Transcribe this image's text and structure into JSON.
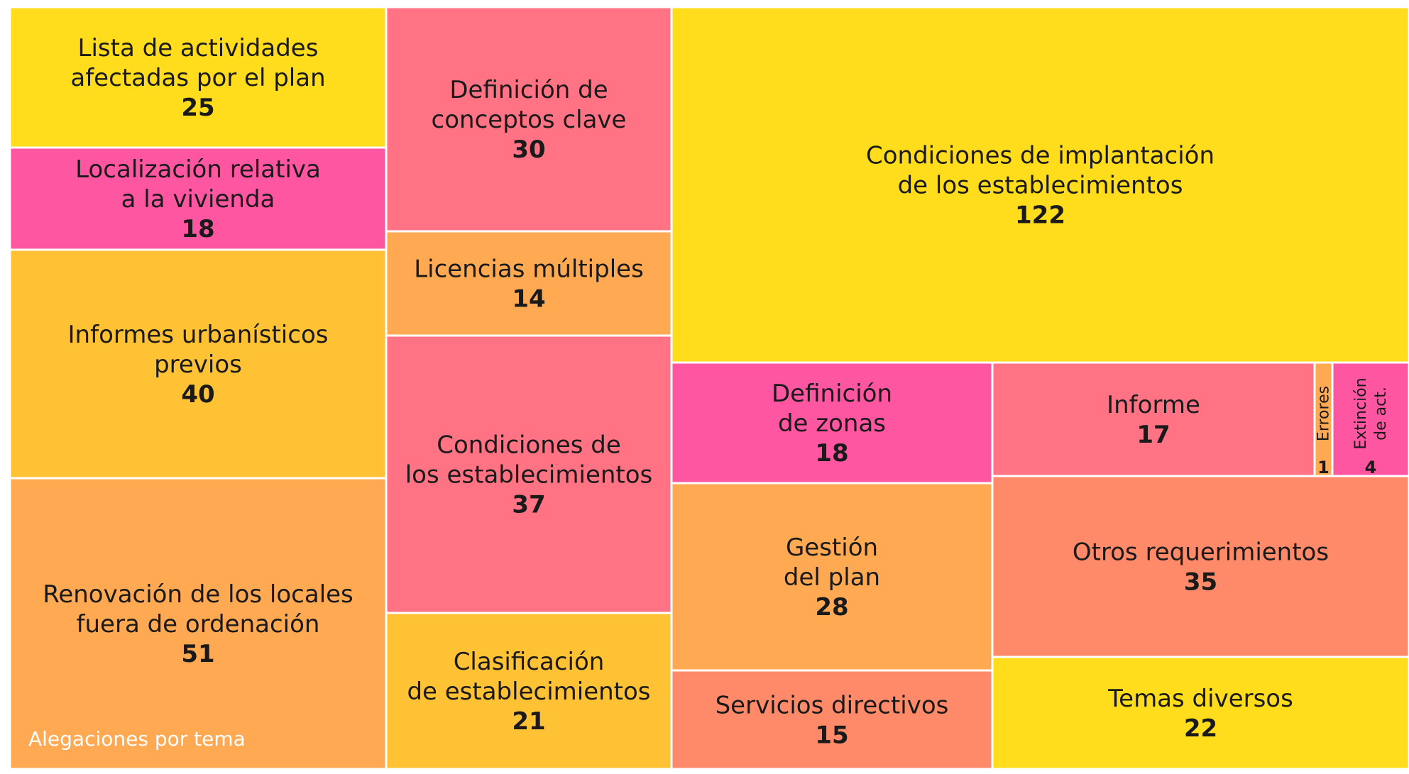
{
  "chart_data": {
    "type": "treemap",
    "title": "Alegaciones por tema",
    "colors": {
      "yellow": "#ffdd1c",
      "gold": "#ffc234",
      "light_orange": "#ffa953",
      "salmon": "#ff8a6a",
      "coral": "#ff7385",
      "magenta": "#ff56a2",
      "border": "#ffffff",
      "text": "#1a1a1a"
    },
    "items": [
      {
        "id": "lista",
        "label": [
          "Lista de actividades",
          "afectadas por el plan"
        ],
        "value": 25,
        "color": "yellow"
      },
      {
        "id": "localizacion",
        "label": [
          "Localización relativa",
          "a la vivienda"
        ],
        "value": 18,
        "color": "magenta"
      },
      {
        "id": "informes",
        "label": [
          "Informes urbanísticos",
          "previos"
        ],
        "value": 40,
        "color": "gold"
      },
      {
        "id": "renovacion",
        "label": [
          "Renovación de los locales",
          "fuera de ordenación"
        ],
        "value": 51,
        "color": "light_orange"
      },
      {
        "id": "definicion-conceptos",
        "label": [
          "Definición de",
          "conceptos clave"
        ],
        "value": 30,
        "color": "coral"
      },
      {
        "id": "licencias",
        "label": [
          "Licencias múltiples"
        ],
        "value": 14,
        "color": "light_orange"
      },
      {
        "id": "condiciones-est",
        "label": [
          "Condiciones de",
          "los establecimientos"
        ],
        "value": 37,
        "color": "coral"
      },
      {
        "id": "clasificacion",
        "label": [
          "Clasificación",
          "de establecimientos"
        ],
        "value": 21,
        "color": "gold"
      },
      {
        "id": "condiciones-impl",
        "label": [
          "Condiciones de implantación",
          "de los establecimientos"
        ],
        "value": 122,
        "color": "yellow"
      },
      {
        "id": "definicion-zonas",
        "label": [
          "Definición",
          "de zonas"
        ],
        "value": 18,
        "color": "magenta"
      },
      {
        "id": "gestion",
        "label": [
          "Gestión",
          "del plan"
        ],
        "value": 28,
        "color": "light_orange"
      },
      {
        "id": "servicios",
        "label": [
          "Servicios directivos"
        ],
        "value": 15,
        "color": "salmon"
      },
      {
        "id": "informe",
        "label": [
          "Informe"
        ],
        "value": 17,
        "color": "coral"
      },
      {
        "id": "errores",
        "label": [
          "Errores"
        ],
        "value": 1,
        "color": "light_orange"
      },
      {
        "id": "extincion",
        "label": [
          "Extinción",
          "de act."
        ],
        "value": 4,
        "color": "magenta"
      },
      {
        "id": "otros",
        "label": [
          "Otros requerimientos"
        ],
        "value": 35,
        "color": "salmon"
      },
      {
        "id": "temas",
        "label": [
          "Temas diversos"
        ],
        "value": 22,
        "color": "yellow"
      }
    ]
  }
}
